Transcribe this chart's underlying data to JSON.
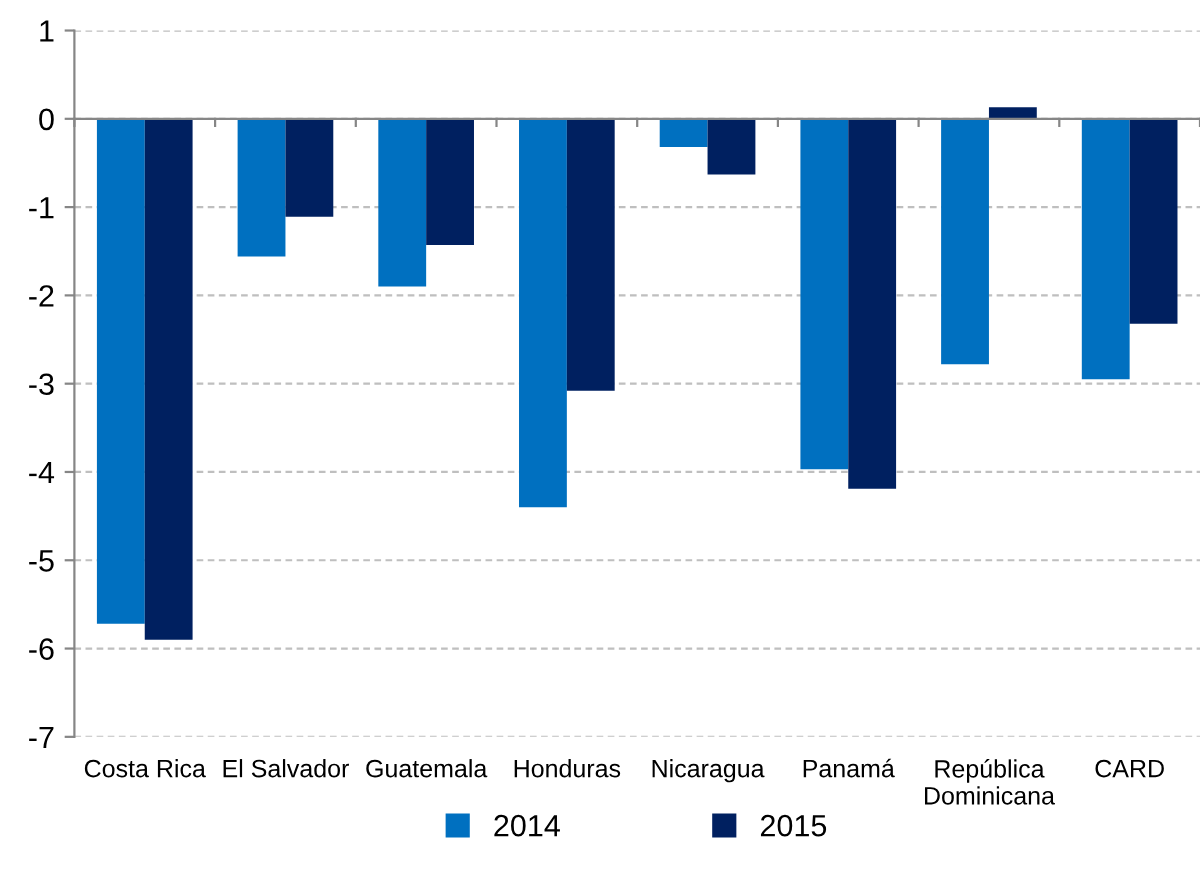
{
  "chart_data": {
    "type": "bar",
    "categories": [
      "Costa Rica",
      "El Salvador",
      "Guatemala",
      "Honduras",
      "Nicaragua",
      "Panamá",
      "República\nDominicana",
      "CARD"
    ],
    "series": [
      {
        "name": "2014",
        "color": "#0070c0",
        "values": [
          -5.72,
          -1.56,
          -1.9,
          -4.4,
          -0.32,
          -3.97,
          -2.78,
          -2.95
        ]
      },
      {
        "name": "2015",
        "color": "#002060",
        "values": [
          -5.9,
          -1.11,
          -1.43,
          -3.08,
          -0.63,
          -4.19,
          0.13,
          -2.32
        ]
      }
    ],
    "ylim": [
      -7,
      1
    ],
    "yticks": [
      -7,
      -6,
      -5,
      -4,
      -3,
      -2,
      -1,
      0,
      1
    ],
    "grid": "y",
    "legend": "bottom"
  }
}
